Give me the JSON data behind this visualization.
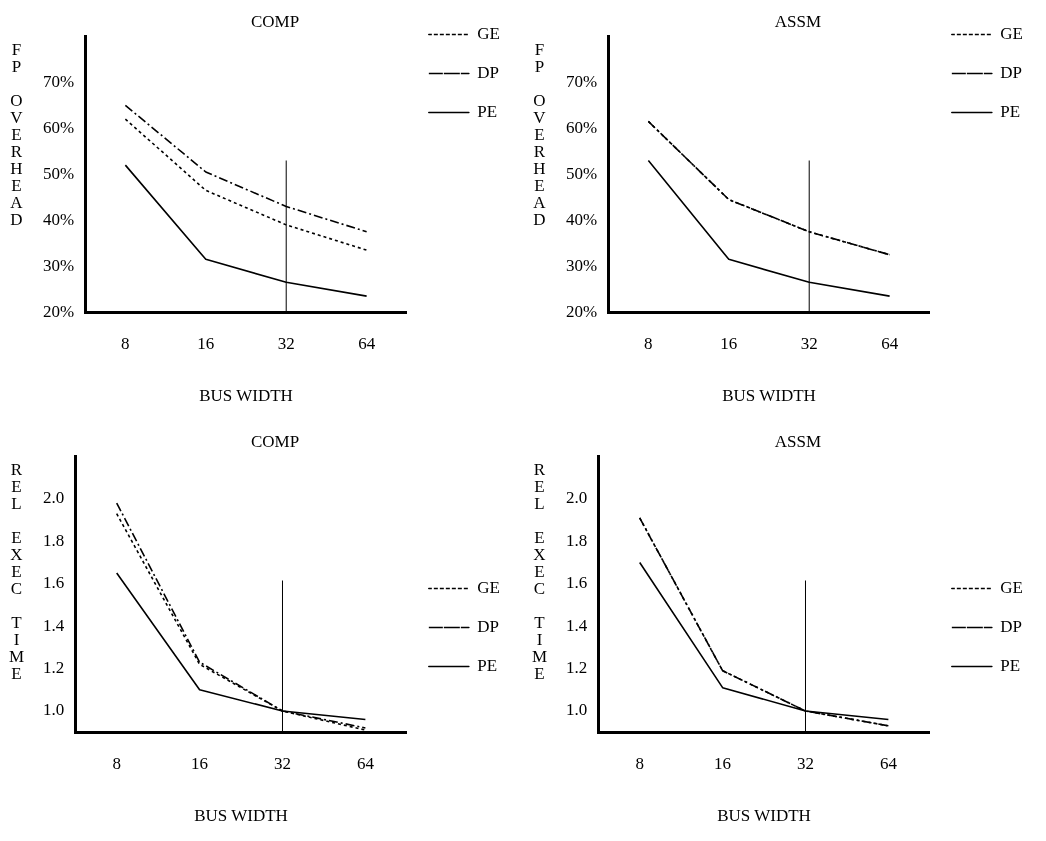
{
  "chart_data": [
    {
      "type": "line",
      "title": "COMP",
      "xlabel": "BUS WIDTH",
      "ylabel": "FP OVERHEAD",
      "categories": [
        "8",
        "16",
        "32",
        "64"
      ],
      "ylim": [
        20,
        80
      ],
      "yticks": [
        {
          "value": 20,
          "label": "20%"
        },
        {
          "value": 30,
          "label": "30%"
        },
        {
          "value": 40,
          "label": "40%"
        },
        {
          "value": 50,
          "label": "50%"
        },
        {
          "value": 60,
          "label": "60%"
        },
        {
          "value": 70,
          "label": "70%"
        }
      ],
      "grid": false,
      "legend": "top right",
      "marker": "none",
      "ref_lines": [
        {
          "axis": "x",
          "value": "32",
          "color": "#000000"
        }
      ],
      "series": [
        {
          "name": "GE",
          "color": "#000000",
          "line_style": "dotted",
          "values": [
            62,
            46.5,
            39,
            33.5
          ]
        },
        {
          "name": "DP",
          "color": "#000000",
          "line_style": "dashed",
          "values": [
            65,
            50.5,
            43,
            37.5
          ]
        },
        {
          "name": "PE",
          "color": "#000000",
          "line_style": "solid",
          "values": [
            52,
            31.5,
            26.5,
            23.5
          ]
        }
      ]
    },
    {
      "type": "line",
      "title": "ASSM",
      "xlabel": "BUS WIDTH",
      "ylabel": "FP OVERHEAD",
      "categories": [
        "8",
        "16",
        "32",
        "64"
      ],
      "ylim": [
        20,
        80
      ],
      "yticks": [
        {
          "value": 20,
          "label": "20%"
        },
        {
          "value": 30,
          "label": "30%"
        },
        {
          "value": 40,
          "label": "40%"
        },
        {
          "value": 50,
          "label": "50%"
        },
        {
          "value": 60,
          "label": "60%"
        },
        {
          "value": 70,
          "label": "70%"
        }
      ],
      "grid": false,
      "legend": "top right",
      "marker": "none",
      "ref_lines": [
        {
          "axis": "x",
          "value": "32",
          "color": "#000000"
        }
      ],
      "series": [
        {
          "name": "GE",
          "color": "#000000",
          "line_style": "dotted",
          "values": [
            61.5,
            44.5,
            37.5,
            32.5
          ]
        },
        {
          "name": "DP",
          "color": "#000000",
          "line_style": "dashed",
          "values": [
            61.5,
            44.5,
            37.5,
            32.5
          ]
        },
        {
          "name": "PE",
          "color": "#000000",
          "line_style": "solid",
          "values": [
            53,
            31.5,
            26.5,
            23.5
          ]
        }
      ]
    },
    {
      "type": "line",
      "title": "COMP",
      "xlabel": "BUS WIDTH",
      "ylabel": "REL EXEC TIME",
      "categories": [
        "8",
        "16",
        "32",
        "64"
      ],
      "ylim": [
        0.9,
        2.2
      ],
      "yticks": [
        {
          "value": 1,
          "label": "1.0"
        },
        {
          "value": 1.2,
          "label": "1.2"
        },
        {
          "value": 1.4,
          "label": "1.4"
        },
        {
          "value": 1.6,
          "label": "1.6"
        },
        {
          "value": 1.8,
          "label": "1.8"
        },
        {
          "value": 2,
          "label": "2.0"
        }
      ],
      "grid": false,
      "legend": "right",
      "marker": "none",
      "ref_lines": [
        {
          "axis": "x",
          "value": "32",
          "color": "#000000"
        }
      ],
      "series": [
        {
          "name": "GE",
          "color": "#000000",
          "line_style": "dotted",
          "values": [
            1.93,
            1.22,
            1.0,
            0.91
          ]
        },
        {
          "name": "DP",
          "color": "#000000",
          "line_style": "dashed",
          "values": [
            1.98,
            1.23,
            1.0,
            0.92
          ]
        },
        {
          "name": "PE",
          "color": "#000000",
          "line_style": "solid",
          "values": [
            1.65,
            1.1,
            1.0,
            0.96
          ]
        }
      ]
    },
    {
      "type": "line",
      "title": "ASSM",
      "xlabel": "BUS WIDTH",
      "ylabel": "REL EXEC TIME",
      "categories": [
        "8",
        "16",
        "32",
        "64"
      ],
      "ylim": [
        0.9,
        2.2
      ],
      "yticks": [
        {
          "value": 1,
          "label": "1.0"
        },
        {
          "value": 1.2,
          "label": "1.2"
        },
        {
          "value": 1.4,
          "label": "1.4"
        },
        {
          "value": 1.6,
          "label": "1.6"
        },
        {
          "value": 1.8,
          "label": "1.8"
        },
        {
          "value": 2,
          "label": "2.0"
        }
      ],
      "grid": false,
      "legend": "right",
      "marker": "none",
      "ref_lines": [
        {
          "axis": "x",
          "value": "32",
          "color": "#000000"
        }
      ],
      "series": [
        {
          "name": "GE",
          "color": "#000000",
          "line_style": "dotted",
          "values": [
            1.91,
            1.19,
            1.0,
            0.93
          ]
        },
        {
          "name": "DP",
          "color": "#000000",
          "line_style": "dashed",
          "values": [
            1.91,
            1.19,
            1.0,
            0.93
          ]
        },
        {
          "name": "PE",
          "color": "#000000",
          "line_style": "solid",
          "values": [
            1.7,
            1.11,
            1.0,
            0.96
          ]
        }
      ]
    }
  ]
}
